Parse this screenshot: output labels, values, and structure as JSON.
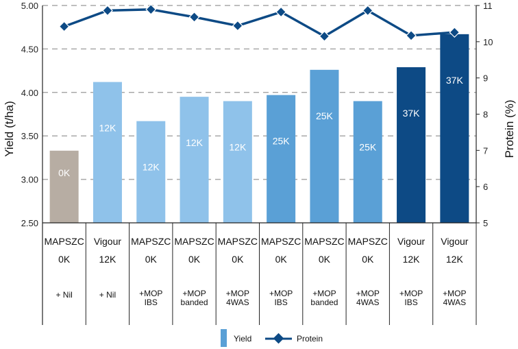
{
  "chart_data": {
    "type": "bar",
    "title": "",
    "ylabel": "Yield (t/ha)",
    "y2label": "Protein (%)",
    "ylim": [
      2.5,
      5.0
    ],
    "y2lim": [
      5,
      11
    ],
    "yticks": [
      "2.50",
      "3.00",
      "3.50",
      "4.00",
      "4.50",
      "5.00"
    ],
    "y2ticks": [
      "5",
      "6",
      "7",
      "8",
      "9",
      "10",
      "11"
    ],
    "grid": true,
    "legend_position": "bottom",
    "categories": [
      {
        "variety": "MAPSZC",
        "rate": "0K",
        "treatment": [
          "+ Nil"
        ]
      },
      {
        "variety": "Vigour",
        "rate": "12K",
        "treatment": [
          "+ Nil"
        ]
      },
      {
        "variety": "MAPSZC",
        "rate": "0K",
        "treatment": [
          "+MOP",
          "IBS"
        ]
      },
      {
        "variety": "MAPSZC",
        "rate": "0K",
        "treatment": [
          "+MOP",
          "banded"
        ]
      },
      {
        "variety": "MAPSZC",
        "rate": "0K",
        "treatment": [
          "+MOP",
          "4WAS"
        ]
      },
      {
        "variety": "MAPSZC",
        "rate": "0K",
        "treatment": [
          "+MOP",
          "IBS"
        ]
      },
      {
        "variety": "MAPSZC",
        "rate": "0K",
        "treatment": [
          "+MOP",
          "banded"
        ]
      },
      {
        "variety": "MAPSZC",
        "rate": "0K",
        "treatment": [
          "+MOP",
          "4WAS"
        ]
      },
      {
        "variety": "Vigour",
        "rate": "12K",
        "treatment": [
          "+MOP",
          "IBS"
        ]
      },
      {
        "variety": "Vigour",
        "rate": "12K",
        "treatment": [
          "+MOP",
          "4WAS"
        ]
      }
    ],
    "series": [
      {
        "name": "Yield",
        "kind": "bar",
        "values": [
          3.33,
          4.12,
          3.67,
          3.95,
          3.9,
          3.97,
          4.26,
          3.9,
          4.29,
          4.67
        ],
        "bar_labels": [
          "0K",
          "12K",
          "12K",
          "12K",
          "12K",
          "25K",
          "25K",
          "25K",
          "37K",
          "37K"
        ],
        "colors": [
          "#b7ada3",
          "#8fc2ea",
          "#8fc2ea",
          "#8fc2ea",
          "#8fc2ea",
          "#5aa0d6",
          "#5aa0d6",
          "#5aa0d6",
          "#0d4a85",
          "#0d4a85"
        ]
      },
      {
        "name": "Protein",
        "kind": "line",
        "axis": "right",
        "color": "#0d4a85",
        "values": [
          10.42,
          10.86,
          10.89,
          10.68,
          10.44,
          10.82,
          10.15,
          10.86,
          10.17,
          10.26
        ]
      }
    ]
  }
}
